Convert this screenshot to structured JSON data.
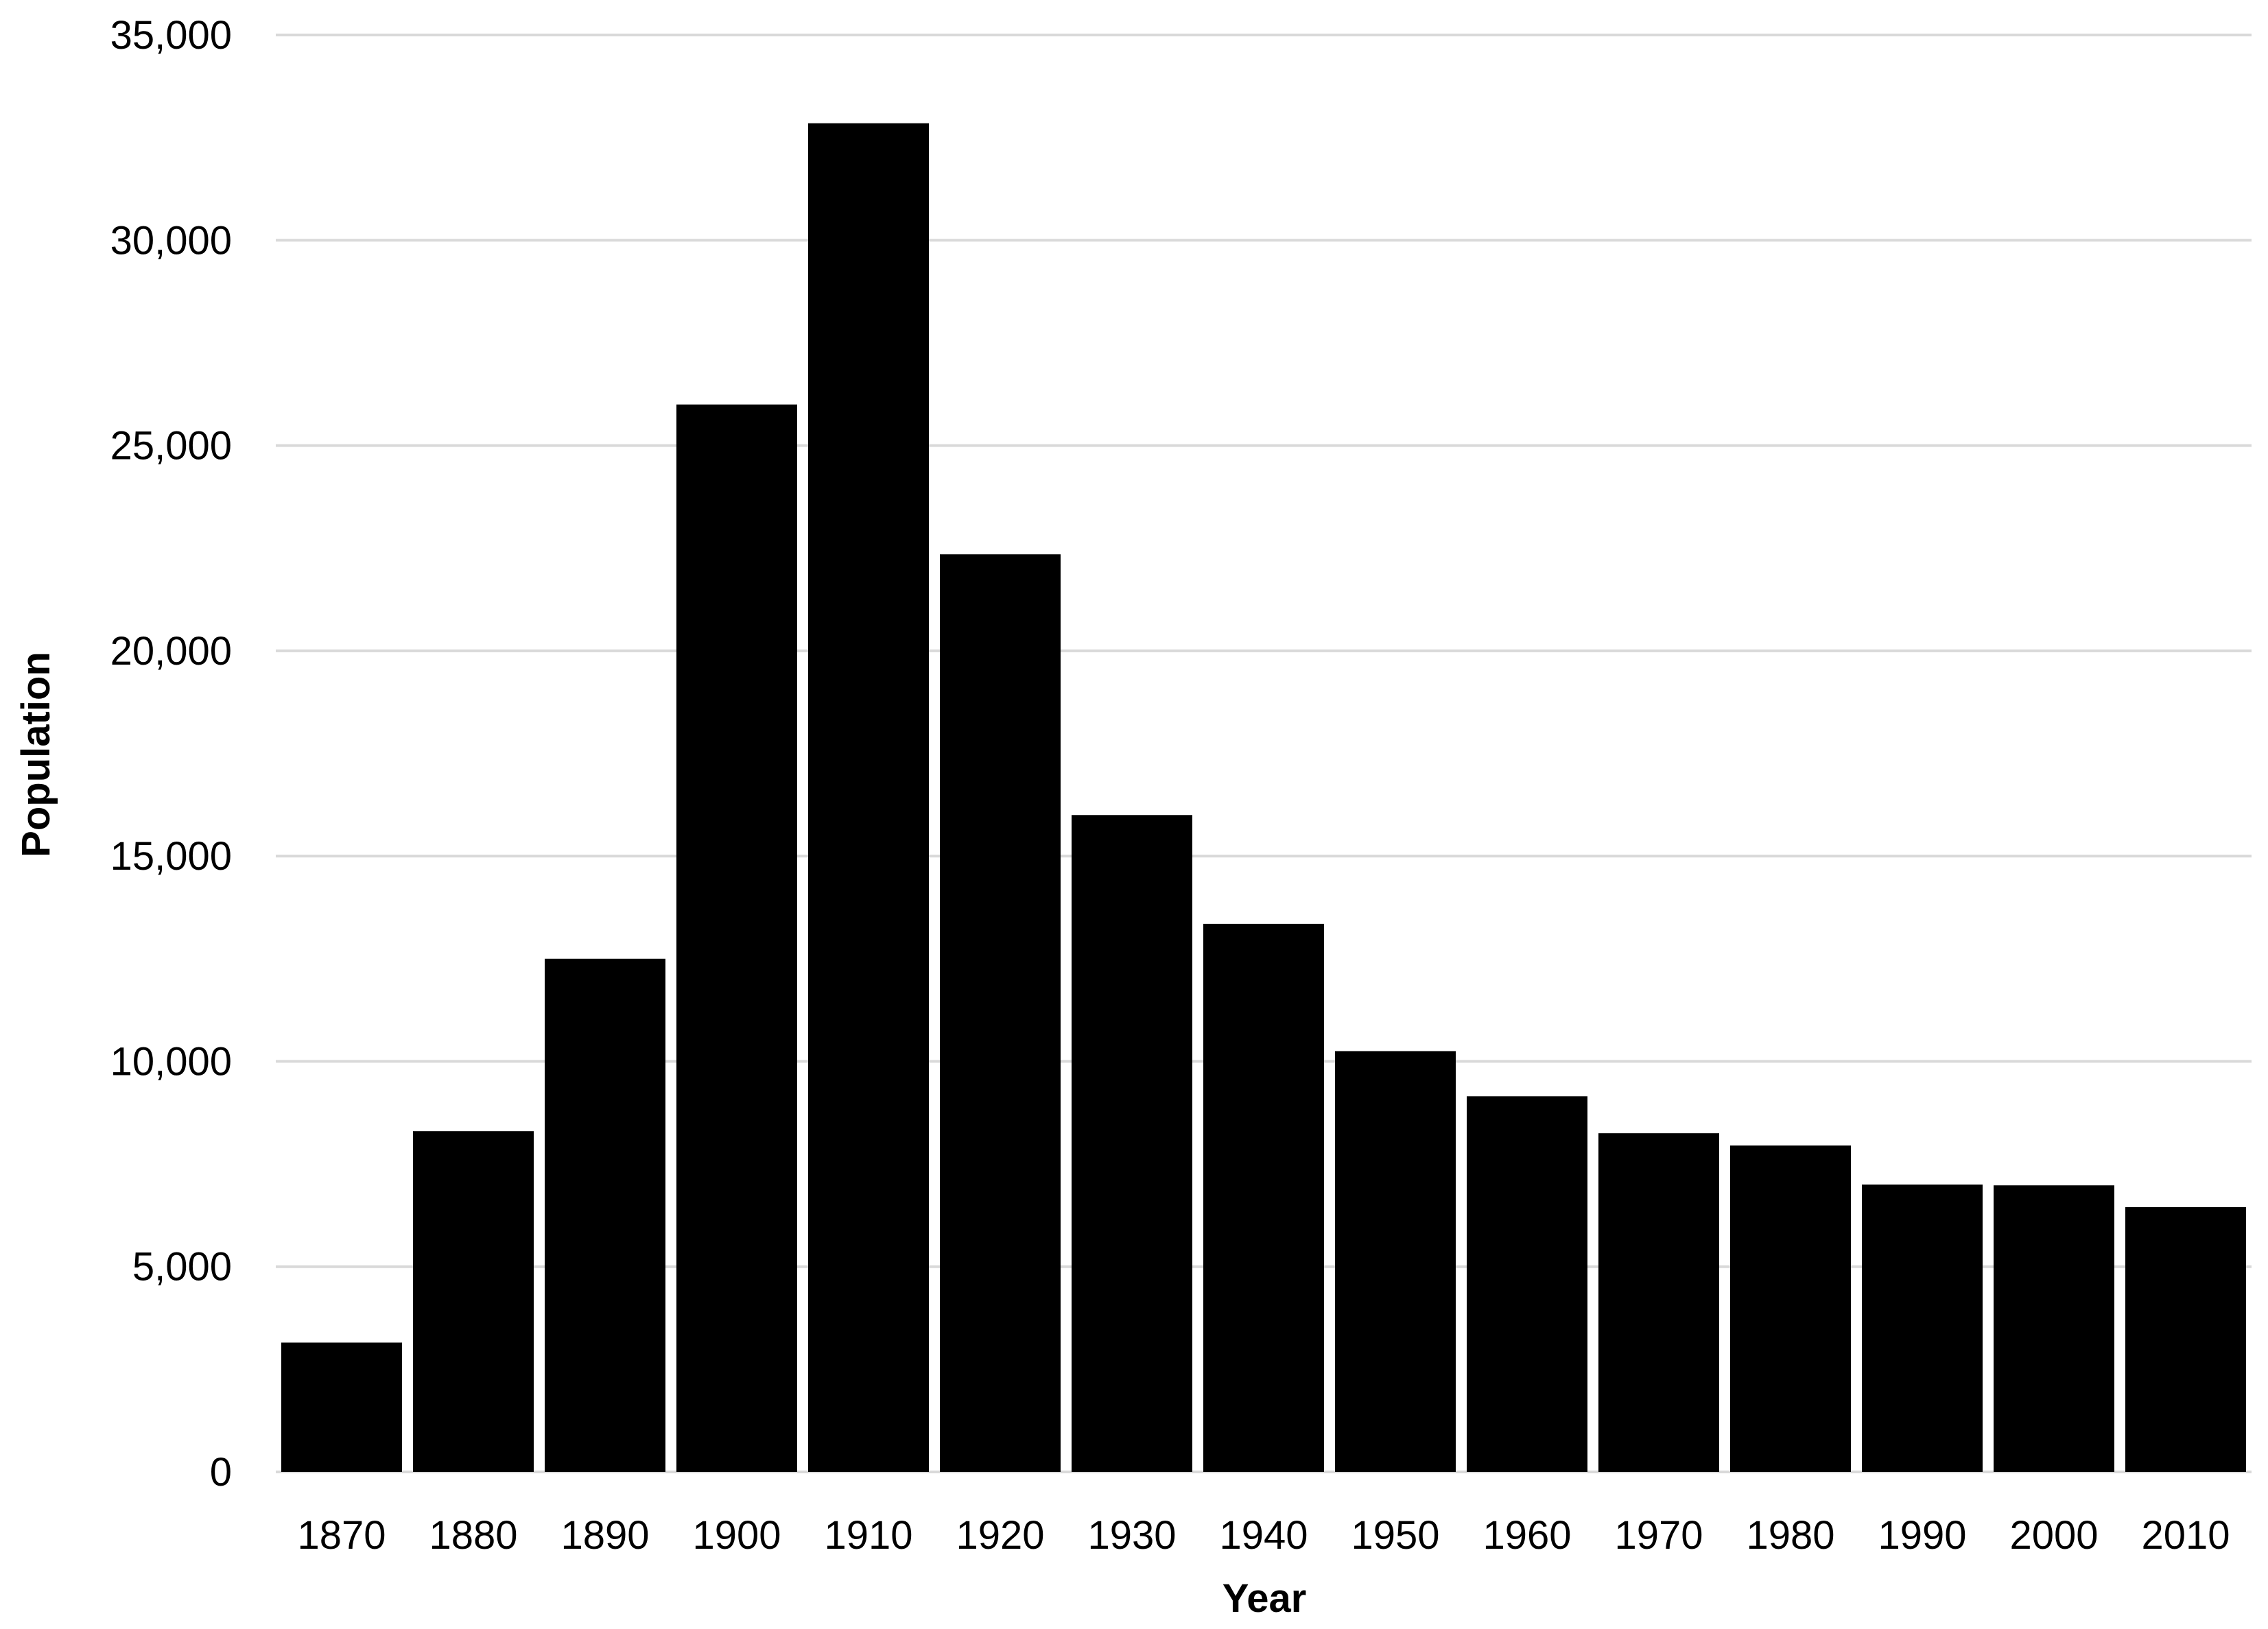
{
  "chart_data": {
    "type": "bar",
    "title": "",
    "xlabel": "Year",
    "ylabel": "Population",
    "categories": [
      "1870",
      "1880",
      "1890",
      "1900",
      "1910",
      "1920",
      "1930",
      "1940",
      "1950",
      "1960",
      "1970",
      "1980",
      "1990",
      "2000",
      "2010"
    ],
    "values": [
      3150,
      8300,
      12500,
      26000,
      32850,
      22350,
      16000,
      13350,
      10250,
      9150,
      8250,
      7950,
      7000,
      6980,
      6450
    ],
    "ylim": [
      0,
      35000
    ],
    "yticks": [
      0,
      5000,
      10000,
      15000,
      20000,
      25000,
      30000,
      35000
    ],
    "ytick_labels": [
      "0",
      "5,000",
      "10,000",
      "15,000",
      "20,000",
      "25,000",
      "30,000",
      "35,000"
    ],
    "grid": true,
    "legend": "none",
    "bar_color": "#000000",
    "grid_color": "#d9d9d9"
  }
}
